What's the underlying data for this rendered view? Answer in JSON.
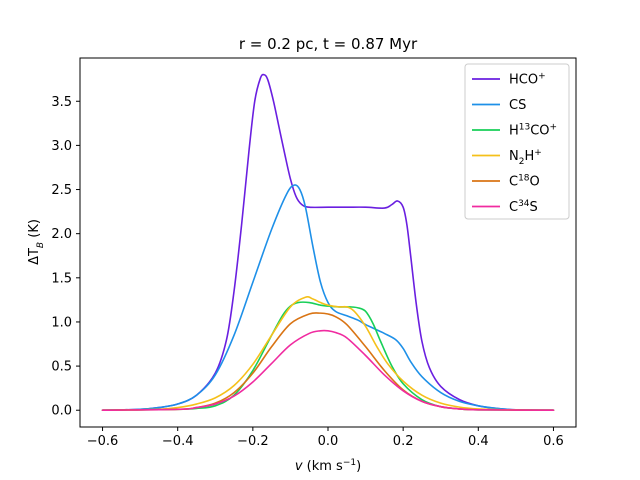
{
  "chart_data": {
    "type": "line",
    "title": "r = 0.2 pc, t = 0.87 Myr",
    "xlabel": {
      "base": "v",
      "units_open": " (km s",
      "units_exp": "−1",
      "units_close": ")"
    },
    "ylabel": {
      "base": "ΔT",
      "sub": "B",
      "units": " (K)"
    },
    "xlim": [
      -0.66,
      0.66
    ],
    "ylim": [
      -0.19,
      3.99
    ],
    "xticks": [
      -0.6,
      -0.4,
      -0.2,
      0.0,
      0.2,
      0.4,
      0.6
    ],
    "xtick_labels": [
      "−0.6",
      "−0.4",
      "−0.2",
      "0.0",
      "0.2",
      "0.4",
      "0.6"
    ],
    "yticks": [
      0.0,
      0.5,
      1.0,
      1.5,
      2.0,
      2.5,
      3.0,
      3.5
    ],
    "ytick_labels": [
      "0.0",
      "0.5",
      "1.0",
      "1.5",
      "2.0",
      "2.5",
      "3.0",
      "3.5"
    ],
    "legend_position": "top-right",
    "series": [
      {
        "name": "HCO+",
        "label_base": "HCO",
        "label_sup": "+",
        "color": "#6a1fe0",
        "points": [
          [
            -0.6,
            0
          ],
          [
            -0.5,
            0.01
          ],
          [
            -0.45,
            0.03
          ],
          [
            -0.4,
            0.07
          ],
          [
            -0.35,
            0.17
          ],
          [
            -0.3,
            0.42
          ],
          [
            -0.27,
            0.8
          ],
          [
            -0.25,
            1.35
          ],
          [
            -0.23,
            2.1
          ],
          [
            -0.21,
            2.95
          ],
          [
            -0.195,
            3.5
          ],
          [
            -0.18,
            3.76
          ],
          [
            -0.17,
            3.8
          ],
          [
            -0.16,
            3.74
          ],
          [
            -0.145,
            3.5
          ],
          [
            -0.13,
            3.2
          ],
          [
            -0.115,
            2.9
          ],
          [
            -0.1,
            2.62
          ],
          [
            -0.085,
            2.42
          ],
          [
            -0.07,
            2.33
          ],
          [
            -0.05,
            2.3
          ],
          [
            0.0,
            2.3
          ],
          [
            0.05,
            2.3
          ],
          [
            0.1,
            2.3
          ],
          [
            0.15,
            2.29
          ],
          [
            0.17,
            2.33
          ],
          [
            0.185,
            2.37
          ],
          [
            0.2,
            2.3
          ],
          [
            0.21,
            2.1
          ],
          [
            0.22,
            1.75
          ],
          [
            0.235,
            1.2
          ],
          [
            0.25,
            0.78
          ],
          [
            0.27,
            0.48
          ],
          [
            0.3,
            0.27
          ],
          [
            0.35,
            0.12
          ],
          [
            0.4,
            0.05
          ],
          [
            0.45,
            0.02
          ],
          [
            0.5,
            0.005
          ],
          [
            0.6,
            0
          ]
        ]
      },
      {
        "name": "CS",
        "label_base": "CS",
        "label_sup": "",
        "color": "#1e90e8",
        "points": [
          [
            -0.6,
            0
          ],
          [
            -0.5,
            0.01
          ],
          [
            -0.45,
            0.03
          ],
          [
            -0.4,
            0.07
          ],
          [
            -0.35,
            0.17
          ],
          [
            -0.3,
            0.4
          ],
          [
            -0.25,
            0.85
          ],
          [
            -0.2,
            1.45
          ],
          [
            -0.15,
            2.05
          ],
          [
            -0.11,
            2.45
          ],
          [
            -0.09,
            2.55
          ],
          [
            -0.075,
            2.5
          ],
          [
            -0.06,
            2.3
          ],
          [
            -0.04,
            1.85
          ],
          [
            -0.02,
            1.45
          ],
          [
            0.0,
            1.22
          ],
          [
            0.02,
            1.12
          ],
          [
            0.05,
            1.07
          ],
          [
            0.08,
            1.02
          ],
          [
            0.1,
            0.97
          ],
          [
            0.12,
            0.93
          ],
          [
            0.15,
            0.87
          ],
          [
            0.18,
            0.8
          ],
          [
            0.2,
            0.7
          ],
          [
            0.22,
            0.55
          ],
          [
            0.25,
            0.38
          ],
          [
            0.3,
            0.2
          ],
          [
            0.35,
            0.1
          ],
          [
            0.4,
            0.05
          ],
          [
            0.45,
            0.02
          ],
          [
            0.5,
            0.005
          ],
          [
            0.6,
            0
          ]
        ]
      },
      {
        "name": "H13CO+",
        "label_base": "H",
        "label_sup1": "13",
        "label_mid": "CO",
        "label_sup": "+",
        "color": "#18cf58",
        "points": [
          [
            -0.6,
            0
          ],
          [
            -0.4,
            0.01
          ],
          [
            -0.35,
            0.02
          ],
          [
            -0.3,
            0.05
          ],
          [
            -0.25,
            0.17
          ],
          [
            -0.2,
            0.45
          ],
          [
            -0.15,
            0.85
          ],
          [
            -0.12,
            1.08
          ],
          [
            -0.1,
            1.18
          ],
          [
            -0.08,
            1.22
          ],
          [
            -0.05,
            1.22
          ],
          [
            -0.02,
            1.19
          ],
          [
            0.0,
            1.18
          ],
          [
            0.03,
            1.17
          ],
          [
            0.06,
            1.17
          ],
          [
            0.08,
            1.16
          ],
          [
            0.1,
            1.12
          ],
          [
            0.12,
            0.98
          ],
          [
            0.14,
            0.78
          ],
          [
            0.17,
            0.5
          ],
          [
            0.2,
            0.3
          ],
          [
            0.25,
            0.12
          ],
          [
            0.3,
            0.04
          ],
          [
            0.35,
            0.015
          ],
          [
            0.4,
            0.005
          ],
          [
            0.6,
            0
          ]
        ]
      },
      {
        "name": "N2H+",
        "label_base": "N",
        "label_sub": "2",
        "label_mid": "H",
        "label_sup": "+",
        "color": "#f5c01a",
        "points": [
          [
            -0.6,
            0
          ],
          [
            -0.5,
            0.005
          ],
          [
            -0.45,
            0.01
          ],
          [
            -0.4,
            0.03
          ],
          [
            -0.35,
            0.07
          ],
          [
            -0.3,
            0.14
          ],
          [
            -0.25,
            0.28
          ],
          [
            -0.2,
            0.52
          ],
          [
            -0.15,
            0.85
          ],
          [
            -0.1,
            1.17
          ],
          [
            -0.06,
            1.28
          ],
          [
            -0.04,
            1.26
          ],
          [
            -0.02,
            1.22
          ],
          [
            0.0,
            1.19
          ],
          [
            0.03,
            1.17
          ],
          [
            0.05,
            1.17
          ],
          [
            0.07,
            1.12
          ],
          [
            0.1,
            0.95
          ],
          [
            0.13,
            0.72
          ],
          [
            0.16,
            0.52
          ],
          [
            0.2,
            0.33
          ],
          [
            0.25,
            0.17
          ],
          [
            0.3,
            0.08
          ],
          [
            0.35,
            0.035
          ],
          [
            0.4,
            0.015
          ],
          [
            0.5,
            0.003
          ],
          [
            0.6,
            0
          ]
        ]
      },
      {
        "name": "C18O",
        "label_base": "C",
        "label_sup1": "18",
        "label_mid": "O",
        "label_sup": "",
        "color": "#d97414",
        "points": [
          [
            -0.6,
            0
          ],
          [
            -0.4,
            0.01
          ],
          [
            -0.35,
            0.03
          ],
          [
            -0.3,
            0.08
          ],
          [
            -0.25,
            0.2
          ],
          [
            -0.2,
            0.42
          ],
          [
            -0.15,
            0.72
          ],
          [
            -0.1,
            0.98
          ],
          [
            -0.05,
            1.09
          ],
          [
            -0.02,
            1.1
          ],
          [
            0.0,
            1.09
          ],
          [
            0.02,
            1.06
          ],
          [
            0.05,
            0.97
          ],
          [
            0.1,
            0.72
          ],
          [
            0.15,
            0.45
          ],
          [
            0.2,
            0.23
          ],
          [
            0.25,
            0.1
          ],
          [
            0.3,
            0.04
          ],
          [
            0.35,
            0.015
          ],
          [
            0.4,
            0.005
          ],
          [
            0.6,
            0
          ]
        ]
      },
      {
        "name": "C34S",
        "label_base": "C",
        "label_sup1": "34",
        "label_mid": "S",
        "label_sup": "",
        "color": "#f02ba0",
        "points": [
          [
            -0.6,
            0
          ],
          [
            -0.4,
            0.01
          ],
          [
            -0.35,
            0.03
          ],
          [
            -0.3,
            0.07
          ],
          [
            -0.25,
            0.16
          ],
          [
            -0.2,
            0.32
          ],
          [
            -0.15,
            0.53
          ],
          [
            -0.1,
            0.74
          ],
          [
            -0.05,
            0.87
          ],
          [
            -0.02,
            0.9
          ],
          [
            0.0,
            0.9
          ],
          [
            0.02,
            0.88
          ],
          [
            0.05,
            0.82
          ],
          [
            0.1,
            0.62
          ],
          [
            0.15,
            0.4
          ],
          [
            0.2,
            0.22
          ],
          [
            0.25,
            0.1
          ],
          [
            0.3,
            0.04
          ],
          [
            0.35,
            0.015
          ],
          [
            0.4,
            0.005
          ],
          [
            0.6,
            0
          ]
        ]
      }
    ]
  }
}
